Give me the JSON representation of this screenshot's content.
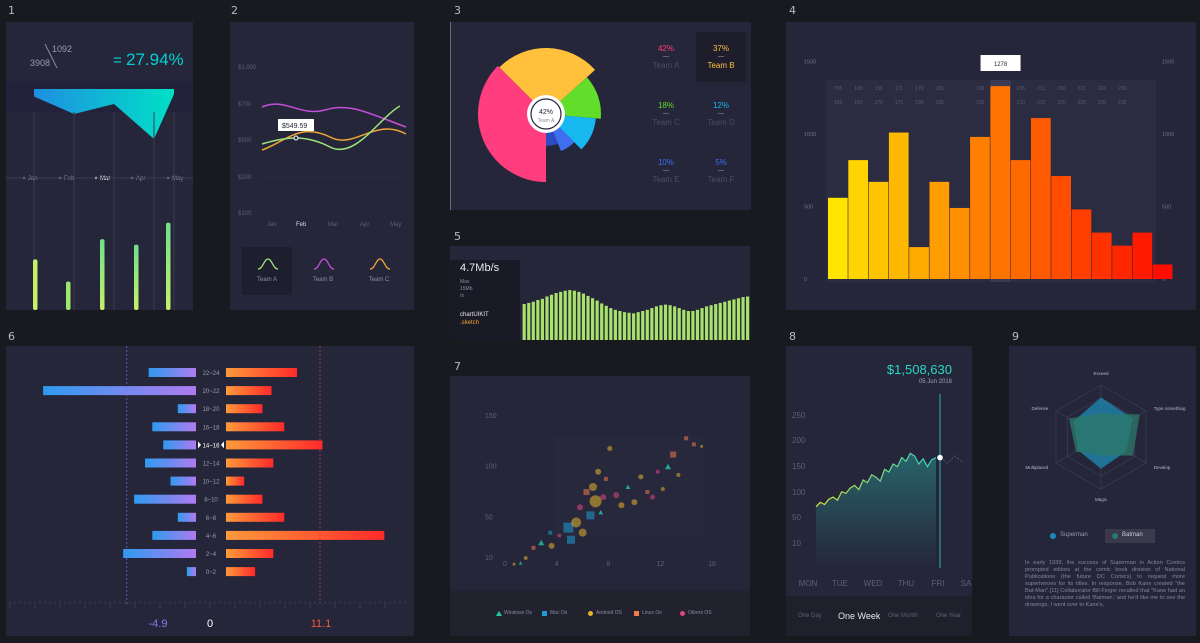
{
  "panels": {
    "p1": {
      "number": "1",
      "stat_a": "1092",
      "stat_b": "3908",
      "equals": "=",
      "percent": "27.94%",
      "months": [
        "Jan",
        "Feb",
        "Mar",
        "Apr",
        "May"
      ],
      "active_month": "Mar",
      "area_depth": [
        0.15,
        0.5,
        0.3,
        1.0,
        0.1
      ],
      "bar_values": [
        0.55,
        0.31,
        0.77,
        0.71,
        0.95
      ],
      "colors": {
        "accent": "#00d2d3",
        "bar_light": "#c6f06a",
        "bar_green": "#6ee08a"
      }
    },
    "p2": {
      "number": "2",
      "y_ticks": [
        "$1,000",
        "$700",
        "$500",
        "$200",
        "$100"
      ],
      "x_ticks": [
        "Jan",
        "Feb",
        "Mar",
        "Apr",
        "May"
      ],
      "active_x": "Feb",
      "tooltip": "$549.59",
      "legend": [
        "Team A",
        "Team B",
        "Team C"
      ],
      "colors": {
        "team_a": "#9be37a",
        "team_b": "#c44fd8",
        "team_c": "#f0a533"
      }
    },
    "p3": {
      "number": "3",
      "center_pct": "42%",
      "center_label": "Team A",
      "teams": [
        {
          "pct": "42%",
          "name": "Team A",
          "color": "#ff3d7f",
          "active": false
        },
        {
          "pct": "37%",
          "name": "Team B",
          "color": "#ffc13b",
          "active": true
        },
        {
          "pct": "18%",
          "name": "Team C",
          "color": "#62dd2a",
          "active": false
        },
        {
          "pct": "12%",
          "name": "Team D",
          "color": "#17b8f0",
          "active": false
        },
        {
          "pct": "10%",
          "name": "Team E",
          "color": "#3d6ff0",
          "active": false
        },
        {
          "pct": "5%",
          "name": "Team F",
          "color": "#3d6ff0",
          "active": false
        }
      ]
    },
    "p4": {
      "number": "4",
      "tooltip": "1278",
      "row1": [
        "705",
        "165",
        "156",
        "171",
        "176",
        "181",
        "191",
        "196",
        "201",
        "206",
        "211",
        "216",
        "221",
        "226",
        "230"
      ],
      "row2": [
        "165",
        "165",
        "170",
        "175",
        "180",
        "185",
        "195",
        "200",
        "205",
        "210",
        "215",
        "220",
        "225",
        "230",
        "235"
      ],
      "y_ticks": [
        "1500",
        "1000",
        "500",
        "0"
      ],
      "y_ticks_left": [
        "1500",
        "1000",
        "500",
        "0"
      ],
      "bar_values": [
        560,
        820,
        670,
        1010,
        220,
        670,
        490,
        980,
        1330,
        820,
        1110,
        710,
        480,
        320,
        230,
        320,
        100
      ],
      "highlight_index": 8
    },
    "p5": {
      "number": "5",
      "speed": "4.7Mb/s",
      "max_label": "Max",
      "max_value": "15Mb",
      "max_unit": "/s",
      "brand": "chartUIKIT",
      "ext": ".sketch",
      "bar_values": [
        0.62,
        0.64,
        0.66,
        0.69,
        0.71,
        0.75,
        0.78,
        0.81,
        0.83,
        0.85,
        0.86,
        0.85,
        0.83,
        0.8,
        0.76,
        0.72,
        0.68,
        0.63,
        0.59,
        0.55,
        0.52,
        0.5,
        0.48,
        0.47,
        0.46,
        0.48,
        0.5,
        0.52,
        0.55,
        0.58,
        0.6,
        0.61,
        0.6,
        0.58,
        0.55,
        0.52,
        0.5,
        0.5,
        0.52,
        0.55,
        0.58,
        0.6,
        0.62,
        0.64,
        0.66,
        0.68,
        0.7,
        0.72,
        0.74,
        0.75
      ]
    },
    "p6": {
      "number": "6",
      "ages": [
        "22~24",
        "20~22",
        "18~20",
        "16~18",
        "14~16",
        "12~14",
        "10~12",
        "8~10",
        "6~8",
        "4~6",
        "2~4",
        "0~2"
      ],
      "left_values": [
        -2.6,
        -8.4,
        -1.0,
        -2.4,
        -1.8,
        -2.8,
        -1.4,
        -3.4,
        -1.0,
        -2.4,
        -4.0,
        -0.5
      ],
      "right_values": [
        3.9,
        2.5,
        2.0,
        3.2,
        5.3,
        2.6,
        1.0,
        2.0,
        3.2,
        8.7,
        2.6,
        1.6
      ],
      "active_age": "14~16",
      "min_label": "-4.9",
      "zero_label": "0",
      "max_label": "11.1",
      "min_value": -4.9,
      "max_value": 11.1
    },
    "p7": {
      "number": "7",
      "y_ticks": [
        "150",
        "100",
        "50",
        "10"
      ],
      "x_ticks": [
        "0",
        "4",
        "8",
        "12",
        "16"
      ],
      "legend": [
        {
          "name": "Windows Os",
          "color": "#1fc7a8",
          "shape": "tri"
        },
        {
          "name": "Mac Os",
          "color": "#1e9ad6",
          "shape": "square"
        },
        {
          "name": "Android OS",
          "color": "#e3b52b",
          "shape": "circle"
        },
        {
          "name": "Linux Os",
          "color": "#f07a4a",
          "shape": "square"
        },
        {
          "name": "Others OS",
          "color": "#e0457a",
          "shape": "circle"
        }
      ],
      "points": [
        {
          "x": 0.7,
          "y": 4,
          "r": 1.5,
          "s": 2
        },
        {
          "x": 1.2,
          "y": 5,
          "r": 1.5,
          "s": 0
        },
        {
          "x": 1.6,
          "y": 10,
          "r": 2,
          "s": 2
        },
        {
          "x": 2.2,
          "y": 20,
          "r": 2,
          "s": 3
        },
        {
          "x": 2.8,
          "y": 25,
          "r": 2.5,
          "s": 0
        },
        {
          "x": 3.5,
          "y": 35,
          "r": 2,
          "s": 1
        },
        {
          "x": 3.6,
          "y": 22,
          "r": 3,
          "s": 2
        },
        {
          "x": 4.2,
          "y": 32,
          "r": 2,
          "s": 4
        },
        {
          "x": 4.9,
          "y": 40,
          "r": 5,
          "s": 1
        },
        {
          "x": 5.1,
          "y": 28,
          "r": 4,
          "s": 1
        },
        {
          "x": 5.5,
          "y": 45,
          "r": 5,
          "s": 2
        },
        {
          "x": 5.8,
          "y": 60,
          "r": 3,
          "s": 4
        },
        {
          "x": 6.0,
          "y": 35,
          "r": 4,
          "s": 2
        },
        {
          "x": 6.3,
          "y": 75,
          "r": 3,
          "s": 3
        },
        {
          "x": 6.6,
          "y": 52,
          "r": 4,
          "s": 1
        },
        {
          "x": 6.8,
          "y": 80,
          "r": 4,
          "s": 2
        },
        {
          "x": 7.0,
          "y": 66,
          "r": 6,
          "s": 2
        },
        {
          "x": 7.2,
          "y": 95,
          "r": 3,
          "s": 2
        },
        {
          "x": 7.4,
          "y": 55,
          "r": 2,
          "s": 0
        },
        {
          "x": 7.6,
          "y": 70,
          "r": 3,
          "s": 4
        },
        {
          "x": 7.8,
          "y": 88,
          "r": 2,
          "s": 3
        },
        {
          "x": 8.1,
          "y": 118,
          "r": 2.5,
          "s": 2
        },
        {
          "x": 8.6,
          "y": 72,
          "r": 3,
          "s": 4
        },
        {
          "x": 9.0,
          "y": 62,
          "r": 3,
          "s": 2
        },
        {
          "x": 9.5,
          "y": 80,
          "r": 2,
          "s": 0
        },
        {
          "x": 10.0,
          "y": 65,
          "r": 3,
          "s": 2
        },
        {
          "x": 10.5,
          "y": 90,
          "r": 2.5,
          "s": 2
        },
        {
          "x": 11.0,
          "y": 75,
          "r": 2,
          "s": 3
        },
        {
          "x": 11.4,
          "y": 70,
          "r": 2.5,
          "s": 4
        },
        {
          "x": 11.8,
          "y": 95,
          "r": 2,
          "s": 4
        },
        {
          "x": 12.2,
          "y": 78,
          "r": 2,
          "s": 2
        },
        {
          "x": 12.6,
          "y": 100,
          "r": 2.5,
          "s": 0
        },
        {
          "x": 13.0,
          "y": 112,
          "r": 3,
          "s": 3
        },
        {
          "x": 13.4,
          "y": 92,
          "r": 2,
          "s": 2
        },
        {
          "x": 14.0,
          "y": 128,
          "r": 2,
          "s": 3
        },
        {
          "x": 14.6,
          "y": 122,
          "r": 2,
          "s": 3
        },
        {
          "x": 15.2,
          "y": 120,
          "r": 1.5,
          "s": 2
        }
      ]
    },
    "p8": {
      "number": "8",
      "price": "$1,508,630",
      "date": "05 Jun 2018",
      "y_ticks": [
        "250",
        "200",
        "150",
        "100",
        "50",
        "10"
      ],
      "days": [
        "MON",
        "TUE",
        "WED",
        "THU",
        "FRI",
        "SA"
      ],
      "tabs": [
        "One Day",
        "One Week",
        "One Month",
        "One Year"
      ],
      "active_tab": "One Week",
      "series": [
        80,
        88,
        84,
        94,
        98,
        92,
        108,
        105,
        115,
        120,
        112,
        130,
        125,
        140,
        135,
        128,
        150,
        145,
        160,
        155,
        172,
        165,
        180,
        175,
        160,
        170,
        155,
        168,
        172
      ]
    },
    "p9": {
      "number": "9",
      "axes": [
        "Exceed",
        "Type something",
        "Develop",
        "Magic",
        "Multiplaced",
        "Defense"
      ],
      "series": [
        {
          "name": "Superman",
          "color": "#1f8bb5",
          "values": [
            0.75,
            0.7,
            0.55,
            0.6,
            0.5,
            0.6
          ]
        },
        {
          "name": "Batman",
          "color": "#2c7a6a",
          "values": [
            0.45,
            0.85,
            0.7,
            0.35,
            0.55,
            0.7
          ]
        }
      ],
      "text": "In early 1939, the success of Superman in Action Comics prompted editors at the comic book division of National Publications (the future DC Comics) to request more superheroes for its titles. In response, Bob Kane created \"the Bat-Man\".[11] Collaborator Bill Finger recalled that \"Kane had an idea for a character called 'Batman,' and he'd like me to see the drawings. I went over to Kane's,"
    }
  }
}
